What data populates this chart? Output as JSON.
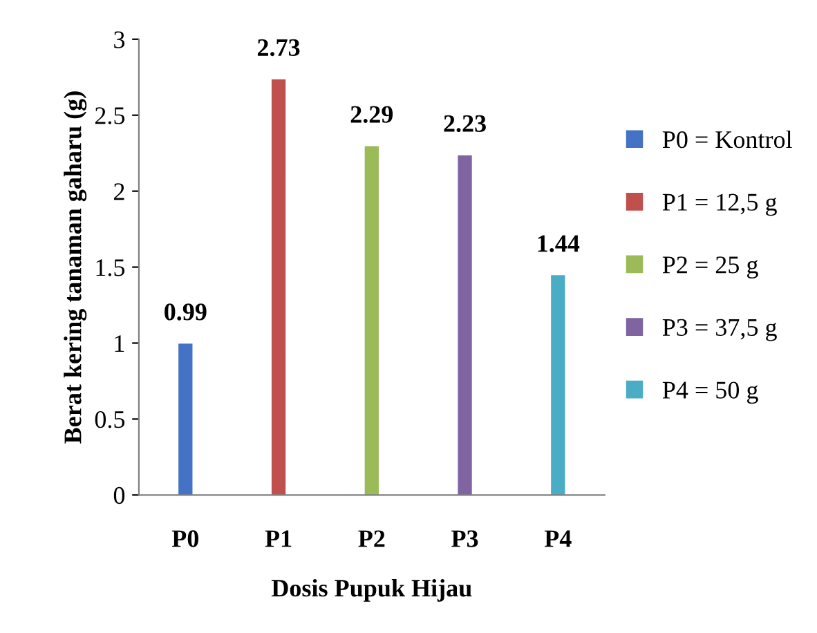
{
  "chart_data": {
    "type": "bar",
    "xlabel": "Dosis Pupuk Hijau",
    "ylabel": "Berat kering tanaman gaharu (g)",
    "categories": [
      "P0",
      "P1",
      "P2",
      "P3",
      "P4"
    ],
    "series": [
      {
        "name": "P0 = Kontrol",
        "color": "#4472c4",
        "values": [
          0.99,
          null,
          null,
          null,
          null
        ]
      },
      {
        "name": "P1 = 12,5 g",
        "color": "#c0504d",
        "values": [
          null,
          2.73,
          null,
          null,
          null
        ]
      },
      {
        "name": "P2 = 25 g",
        "color": "#9bbb59",
        "values": [
          null,
          null,
          2.29,
          null,
          null
        ]
      },
      {
        "name": "P3 = 37,5 g",
        "color": "#8064a2",
        "values": [
          null,
          null,
          null,
          2.23,
          null
        ]
      },
      {
        "name": "P4 = 50 g",
        "color": "#4bacc6",
        "values": [
          null,
          null,
          null,
          null,
          1.44
        ]
      }
    ],
    "ylim": [
      0,
      3
    ],
    "yticks": [
      0,
      0.5,
      1,
      1.5,
      2,
      2.5,
      3
    ],
    "grid": false,
    "legend": "right",
    "data_labels": true
  }
}
